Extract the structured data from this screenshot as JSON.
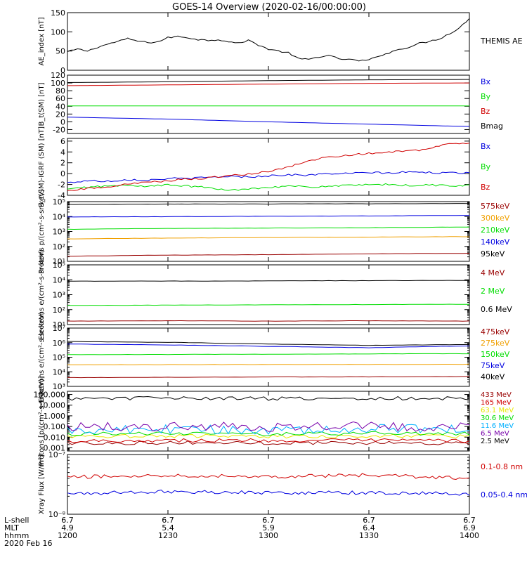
{
  "title": "GOES-14 Overview (2020-02-16/00:00:00)",
  "colors": {
    "black": "#000000",
    "red": "#d00000",
    "green": "#00dd00",
    "blue": "#0000e0",
    "orange": "#f0a000",
    "darkred": "#990000",
    "cyan": "#00b0ff",
    "yellow": "#e8e800",
    "purple": "#7700aa"
  },
  "chart_data": [
    {
      "type": "line",
      "ylabel": "AE_index [nT]",
      "yscale": "linear",
      "ylim": [
        0,
        150
      ],
      "yticks": [
        0,
        50,
        100,
        150
      ],
      "ytick_labels": [
        "0",
        "50",
        "100",
        "150"
      ],
      "series": [
        {
          "name": "THEMIS AE",
          "color": "#000000",
          "x": [
            0,
            3,
            6,
            9,
            12,
            15,
            18,
            21,
            24,
            27,
            30,
            33,
            36,
            39,
            42,
            45,
            48,
            51,
            54,
            57,
            60,
            63,
            66,
            69,
            72,
            75,
            78,
            81,
            84,
            87,
            90,
            93,
            96,
            99,
            102,
            105,
            108,
            111,
            114,
            117,
            120
          ],
          "y": [
            48,
            55,
            50,
            60,
            68,
            75,
            82,
            76,
            72,
            74,
            85,
            88,
            85,
            80,
            78,
            80,
            75,
            70,
            78,
            66,
            55,
            50,
            45,
            30,
            28,
            35,
            38,
            30,
            28,
            25,
            26,
            38,
            45,
            55,
            60,
            70,
            75,
            82,
            95,
            110,
            135
          ]
        }
      ]
    },
    {
      "type": "line",
      "ylabel": "B_t(SM) [nT]",
      "yscale": "linear",
      "ylim": [
        -30,
        120
      ],
      "yticks": [
        -20,
        0,
        20,
        40,
        60,
        80,
        100,
        120
      ],
      "ytick_labels": [
        "-20",
        "0",
        "20",
        "40",
        "60",
        "80",
        "100",
        "120"
      ],
      "series": [
        {
          "name": "Bx",
          "color": "#0000e0",
          "x": [
            0,
            30,
            60,
            90,
            120
          ],
          "y": [
            12,
            7,
            0,
            -6,
            -12
          ]
        },
        {
          "name": "By",
          "color": "#00dd00",
          "x": [
            0,
            30,
            60,
            90,
            120
          ],
          "y": [
            41,
            41,
            41,
            41,
            41
          ]
        },
        {
          "name": "Bz",
          "color": "#d00000",
          "x": [
            0,
            30,
            60,
            90,
            120
          ],
          "y": [
            93,
            95,
            97,
            99,
            100
          ]
        },
        {
          "name": "Bmag",
          "color": "#000000",
          "x": [
            0,
            30,
            60,
            90,
            120
          ],
          "y": [
            101,
            103,
            106,
            108,
            109
          ]
        }
      ]
    },
    {
      "type": "line",
      "ylabel": "B_t(SM)-IGRF (SM) [nT]",
      "yscale": "linear",
      "ylim": [
        -4,
        6.5
      ],
      "yticks": [
        -4,
        -2,
        0,
        2,
        4,
        6
      ],
      "ytick_labels": [
        "-4",
        "-2",
        "0",
        "2",
        "4",
        "6"
      ],
      "series": [
        {
          "name": "Bx",
          "color": "#0000e0",
          "x": [
            0,
            6,
            12,
            18,
            24,
            30,
            36,
            42,
            48,
            54,
            60,
            66,
            72,
            78,
            84,
            90,
            96,
            102,
            108,
            114,
            120
          ],
          "y": [
            -1.7,
            -1.3,
            -1.4,
            -1.1,
            -1.2,
            -0.9,
            -0.9,
            -0.7,
            -0.5,
            -0.6,
            -0.4,
            -0.2,
            -0.3,
            0.0,
            0.0,
            0.2,
            0.1,
            0.3,
            0.2,
            0.1,
            0.2
          ]
        },
        {
          "name": "By",
          "color": "#00dd00",
          "x": [
            0,
            6,
            12,
            18,
            24,
            30,
            36,
            42,
            48,
            54,
            60,
            66,
            72,
            78,
            84,
            90,
            96,
            102,
            108,
            114,
            120
          ],
          "y": [
            -2.9,
            -2.5,
            -2.3,
            -2.2,
            -2.3,
            -2.1,
            -2.3,
            -2.6,
            -3.1,
            -2.8,
            -2.5,
            -2.3,
            -2.5,
            -2.3,
            -2.2,
            -2.1,
            -2.0,
            -2.2,
            -2.1,
            -2.2,
            -2.2
          ]
        },
        {
          "name": "Bz",
          "color": "#d00000",
          "x": [
            0,
            6,
            12,
            18,
            24,
            30,
            36,
            42,
            48,
            54,
            60,
            66,
            72,
            78,
            84,
            90,
            96,
            102,
            108,
            114,
            120
          ],
          "y": [
            -3.2,
            -2.7,
            -2.4,
            -2.0,
            -1.6,
            -1.3,
            -1.0,
            -0.8,
            -0.4,
            -0.1,
            0.4,
            1.2,
            2.4,
            3.1,
            3.4,
            3.7,
            4.0,
            4.2,
            4.5,
            5.6,
            5.7
          ]
        }
      ]
    },
    {
      "type": "line",
      "ylabel": "Protons p/(cm²-s-sr-keV)",
      "yscale": "log",
      "ylim": [
        10,
        100000
      ],
      "yticks": [
        10,
        100,
        1000,
        10000,
        100000
      ],
      "ytick_labels": [
        "10¹",
        "10²",
        "10³",
        "10⁴",
        "10⁵"
      ],
      "series": [
        {
          "name": "575keV",
          "color": "#990000",
          "x": [
            0,
            30,
            60,
            90,
            120
          ],
          "y": [
            22,
            26,
            28,
            32,
            34
          ]
        },
        {
          "name": "300keV",
          "color": "#f0a000",
          "x": [
            0,
            30,
            60,
            90,
            120
          ],
          "y": [
            320,
            360,
            390,
            420,
            450
          ]
        },
        {
          "name": "210keV",
          "color": "#00dd00",
          "x": [
            0,
            30,
            60,
            90,
            120
          ],
          "y": [
            1400,
            1600,
            1700,
            1800,
            2000
          ]
        },
        {
          "name": "140keV",
          "color": "#0000e0",
          "x": [
            0,
            30,
            60,
            90,
            120
          ],
          "y": [
            9500,
            9800,
            10500,
            11000,
            12000
          ]
        },
        {
          "name": "95keV",
          "color": "#000000",
          "x": [
            0,
            30,
            60,
            90,
            120
          ],
          "y": [
            65000,
            68000,
            70000,
            72000,
            75000
          ]
        }
      ]
    },
    {
      "type": "line",
      "ylabel": "Electrons e/(cm²-s-sr-keV)",
      "yscale": "log",
      "ylim": [
        10,
        100000
      ],
      "yticks": [
        10,
        100,
        1000,
        10000,
        100000
      ],
      "ytick_labels": [
        "10¹",
        "10²",
        "10³",
        "10⁴",
        "10⁵"
      ],
      "series": [
        {
          "name": "4 MeV",
          "color": "#990000",
          "x": [
            0,
            30,
            60,
            90,
            120
          ],
          "y": [
            17,
            18,
            17,
            18,
            17
          ]
        },
        {
          "name": "2 MeV",
          "color": "#00dd00",
          "x": [
            0,
            30,
            60,
            90,
            120
          ],
          "y": [
            190,
            200,
            210,
            220,
            230
          ]
        },
        {
          "name": "0.6 MeV",
          "color": "#000000",
          "x": [
            0,
            30,
            60,
            90,
            120
          ],
          "y": [
            8000,
            8200,
            8400,
            8800,
            9000
          ]
        }
      ]
    },
    {
      "type": "line",
      "ylabel": "Electrons e/(cm²-s-sr-keV)",
      "yscale": "log",
      "ylim": [
        1000,
        10000000
      ],
      "yticks": [
        1000,
        10000,
        100000,
        1000000,
        10000000
      ],
      "ytick_labels": [
        "10³",
        "10⁴",
        "10⁵",
        "10⁶",
        "10⁷"
      ],
      "series": [
        {
          "name": "475keV",
          "color": "#990000",
          "x": [
            0,
            30,
            60,
            90,
            120
          ],
          "y": [
            4000,
            4200,
            4400,
            4500,
            4700
          ]
        },
        {
          "name": "275keV",
          "color": "#f0a000",
          "x": [
            0,
            30,
            60,
            90,
            120
          ],
          "y": [
            30000,
            31000,
            32000,
            32000,
            33000
          ]
        },
        {
          "name": "150keV",
          "color": "#00dd00",
          "x": [
            0,
            30,
            60,
            90,
            120
          ],
          "y": [
            150000,
            155000,
            160000,
            170000,
            175000
          ]
        },
        {
          "name": "75keV",
          "color": "#0000e0",
          "x": [
            0,
            30,
            60,
            90,
            120
          ],
          "y": [
            800000,
            700000,
            550000,
            450000,
            600000
          ]
        },
        {
          "name": "40keV",
          "color": "#000000",
          "x": [
            0,
            30,
            60,
            90,
            120
          ],
          "y": [
            1200000,
            1050000,
            800000,
            650000,
            750000
          ]
        }
      ]
    },
    {
      "type": "line",
      "ylabel": "Protons [p/(cm²-s-sr-keV)]",
      "yscale": "log",
      "ylim": [
        0.0005,
        200
      ],
      "yticks": [
        0.001,
        0.01,
        0.1,
        1,
        10,
        100
      ],
      "ytick_labels": [
        "0.001",
        "0.010",
        "0.100",
        "1.000",
        "10.000",
        "100.000"
      ],
      "series": [
        {
          "name": "433 MeV",
          "color": "#990000",
          "x": [
            0,
            30,
            60,
            90,
            120
          ],
          "y": [
            0.0028,
            0.003,
            0.0029,
            0.003,
            0.0028
          ]
        },
        {
          "name": "165 MeV",
          "color": "#d00000",
          "x": [
            0,
            30,
            60,
            90,
            120
          ],
          "y": [
            0.0045,
            0.005,
            0.0048,
            0.005,
            0.0045
          ]
        },
        {
          "name": "63.1 MeV",
          "color": "#e8e800",
          "x": [
            0,
            30,
            60,
            90,
            120
          ],
          "y": [
            0.012,
            0.013,
            0.012,
            0.013,
            0.012
          ]
        },
        {
          "name": "30.6 MeV",
          "color": "#00dd00",
          "x": [
            0,
            30,
            60,
            90,
            120
          ],
          "y": [
            0.02,
            0.022,
            0.02,
            0.023,
            0.021
          ]
        },
        {
          "name": "11.6 MeV",
          "color": "#00b0ff",
          "x": [
            0,
            30,
            60,
            90,
            120
          ],
          "y": [
            0.05,
            0.06,
            0.05,
            0.06,
            0.05
          ]
        },
        {
          "name": "6.5 MeV",
          "color": "#7700aa",
          "x": [
            0,
            30,
            60,
            90,
            120
          ],
          "y": [
            0.09,
            0.1,
            0.09,
            0.1,
            0.09
          ]
        },
        {
          "name": "2.5 MeV",
          "color": "#000000",
          "x": [
            0,
            30,
            60,
            90,
            120
          ],
          "y": [
            40,
            45,
            42,
            44,
            45
          ]
        }
      ]
    },
    {
      "type": "line",
      "ylabel": "Xray Flux [W/m²]",
      "yscale": "log",
      "ylim": [
        1e-08,
        1e-07
      ],
      "yticks": [
        1e-08,
        1e-07
      ],
      "ytick_labels": [
        "10⁻⁸",
        "10⁻⁷"
      ],
      "series": [
        {
          "name": "0.1-0.8 nm",
          "color": "#d00000",
          "x": [
            0,
            30,
            60,
            90,
            120
          ],
          "y": [
            4.2e-08,
            4.5e-08,
            4.3e-08,
            4.5e-08,
            4e-08
          ]
        },
        {
          "name": "0.05-0.4 nm",
          "color": "#0000e0",
          "x": [
            0,
            30,
            60,
            90,
            120
          ],
          "y": [
            2.2e-08,
            2.4e-08,
            2.3e-08,
            2.3e-08,
            2.2e-08
          ]
        }
      ]
    }
  ],
  "xaxis": {
    "row_labels": [
      "L-shell",
      "MLT",
      "hhmm",
      "2020 Feb 16"
    ],
    "ticks": [
      {
        "lshell": "6.7",
        "mlt": "4.9",
        "hhmm": "1200"
      },
      {
        "lshell": "6.7",
        "mlt": "5.4",
        "hhmm": "1230"
      },
      {
        "lshell": "6.7",
        "mlt": "5.9",
        "hhmm": "1300"
      },
      {
        "lshell": "6.7",
        "mlt": "6.4",
        "hhmm": "1330"
      },
      {
        "lshell": "6.7",
        "mlt": "6.9",
        "hhmm": "1400"
      }
    ]
  }
}
